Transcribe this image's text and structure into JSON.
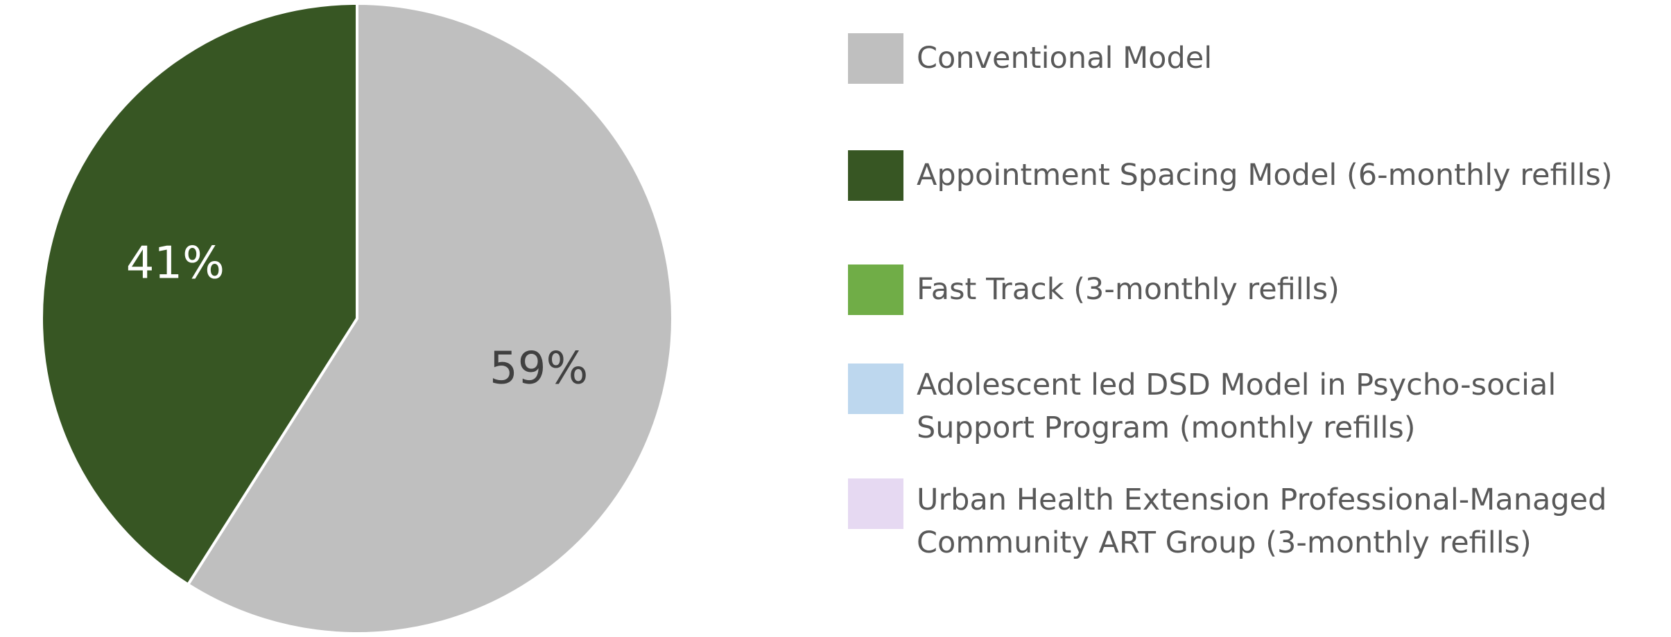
{
  "chart_data": {
    "type": "pie",
    "categories": [
      "Conventional Model",
      "Appointment Spacing Model (6-monthly refills)",
      "Fast Track (3-monthly refills)",
      "Adolescent led DSD Model in Psycho-social Support Program (monthly refills)",
      "Urban Health Extension Professional-Managed Community ART Group (3-monthly refills)"
    ],
    "values": [
      59,
      41,
      0,
      0,
      0
    ],
    "value_labels": [
      "59%",
      "41%",
      null,
      null,
      null
    ],
    "colors": [
      "#bfbfbf",
      "#375623",
      "#70ad47",
      "#bdd7ee",
      "#e6d9f2"
    ],
    "label_colors": [
      "#404040",
      "#ffffff",
      "#404040",
      "#404040",
      "#404040"
    ],
    "legend": "right"
  }
}
